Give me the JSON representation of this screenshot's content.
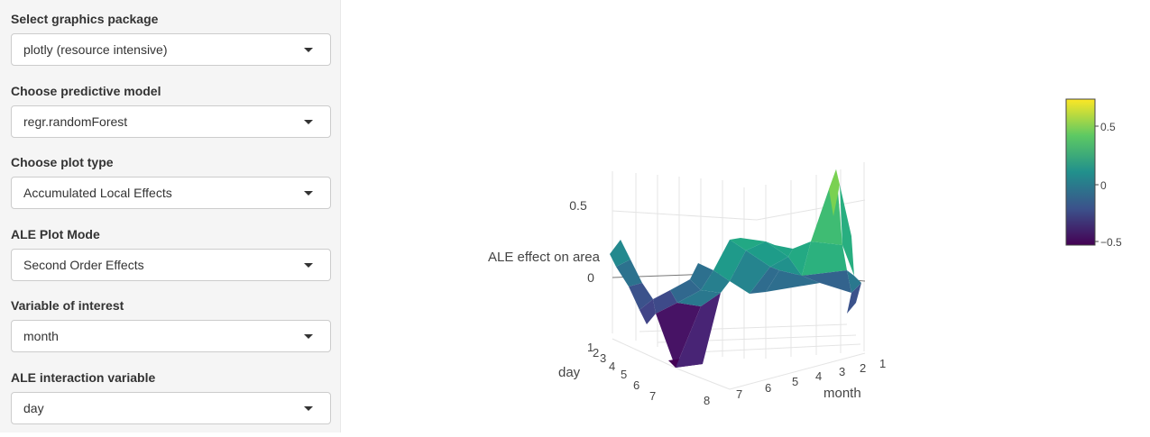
{
  "sidebar": {
    "fields": [
      {
        "label": "Select graphics package",
        "value": "plotly (resource intensive)"
      },
      {
        "label": "Choose predictive model",
        "value": "regr.randomForest"
      },
      {
        "label": "Choose plot type",
        "value": "Accumulated Local Effects"
      },
      {
        "label": "ALE Plot Mode",
        "value": "Second Order Effects"
      },
      {
        "label": "Variable of interest",
        "value": "month"
      },
      {
        "label": "ALE interaction variable",
        "value": "day"
      }
    ]
  },
  "chart_data": {
    "type": "surface",
    "zlabel": "ALE effect on area",
    "xlabel": "month",
    "ylabel": "day",
    "x_ticks": [
      "1",
      "2",
      "3",
      "4",
      "5",
      "6",
      "7",
      "8"
    ],
    "y_ticks": [
      "1",
      "2",
      "3",
      "4",
      "5",
      "6",
      "7"
    ],
    "z_ticks": [
      "0",
      "0.5"
    ],
    "z_approx_range": [
      -0.55,
      0.75
    ],
    "colorscale": "viridis",
    "colorbar": {
      "ticks": [
        "0.5",
        "0",
        "−0.5"
      ],
      "range": [
        -0.6,
        0.75
      ],
      "colors": [
        "#440154",
        "#3b528b",
        "#21908c",
        "#5dc963",
        "#fde725"
      ]
    }
  }
}
